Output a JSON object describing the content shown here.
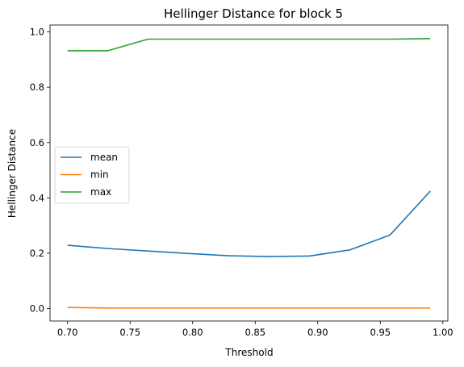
{
  "chart_data": {
    "type": "line",
    "title": "Hellinger Distance for block 5",
    "xlabel": "Threshold",
    "ylabel": "Hellinger Distance",
    "xlim": [
      0.686,
      1.004
    ],
    "ylim": [
      -0.045,
      1.025
    ],
    "xticks": [
      0.7,
      0.75,
      0.8,
      0.85,
      0.9,
      0.95,
      1.0
    ],
    "xtick_labels": [
      "0.70",
      "0.75",
      "0.80",
      "0.85",
      "0.90",
      "0.95",
      "1.00"
    ],
    "yticks": [
      0.0,
      0.2,
      0.4,
      0.6,
      0.8,
      1.0
    ],
    "ytick_labels": [
      "0.0",
      "0.2",
      "0.4",
      "0.6",
      "0.8",
      "1.0"
    ],
    "grid": false,
    "legend": "center-left",
    "x": [
      0.7,
      0.7322,
      0.7644,
      0.7967,
      0.8289,
      0.8611,
      0.8933,
      0.9256,
      0.9578,
      0.99
    ],
    "series": [
      {
        "name": "mean",
        "color": "#1f77b4",
        "values": [
          0.229,
          0.217,
          0.208,
          0.199,
          0.191,
          0.188,
          0.19,
          0.212,
          0.266,
          0.425
        ]
      },
      {
        "name": "min",
        "color": "#ff7f0e",
        "values": [
          0.004,
          0.002,
          0.002,
          0.002,
          0.002,
          0.002,
          0.002,
          0.002,
          0.002,
          0.002
        ]
      },
      {
        "name": "max",
        "color": "#2ca02c",
        "values": [
          0.932,
          0.932,
          0.974,
          0.974,
          0.974,
          0.974,
          0.974,
          0.974,
          0.974,
          0.976
        ]
      }
    ]
  }
}
